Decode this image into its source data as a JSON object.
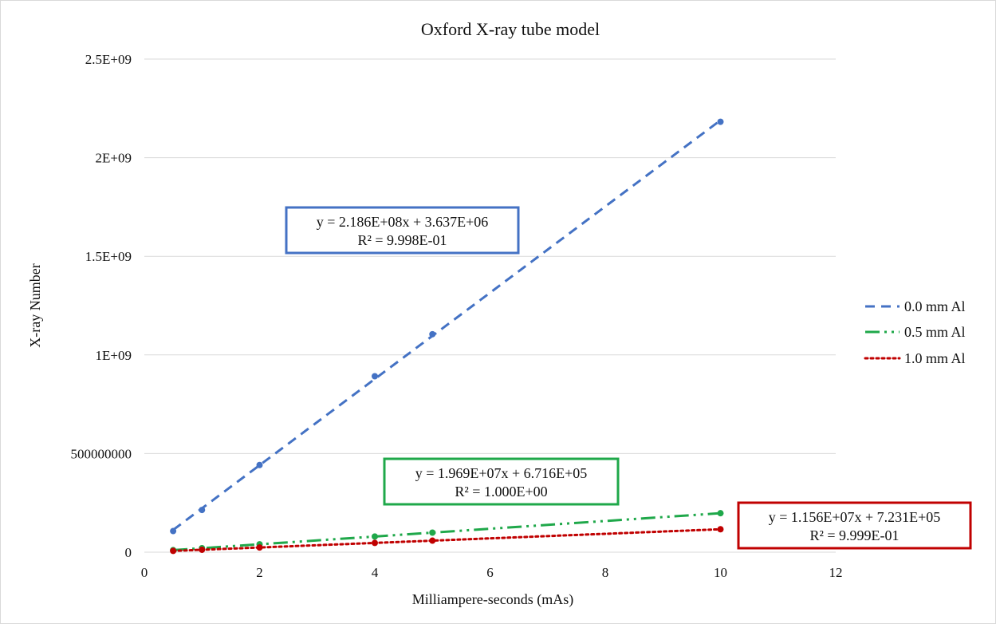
{
  "chart_data": {
    "type": "scatter",
    "title": "Oxford X-ray tube model",
    "xlabel": "Milliampere-seconds (mAs)",
    "ylabel": "X-ray Number",
    "xlim": [
      0,
      12
    ],
    "ylim": [
      0,
      2500000000
    ],
    "x_ticks": [
      0,
      2,
      4,
      6,
      8,
      10,
      12
    ],
    "x_tick_labels": [
      "0",
      "2",
      "4",
      "6",
      "8",
      "10",
      "12"
    ],
    "y_ticks": [
      0,
      500000000,
      1000000000,
      1500000000,
      2000000000,
      2500000000
    ],
    "y_tick_labels": [
      "0",
      "500000000",
      "1E+09",
      "1.5E+09",
      "2E+09",
      "2.5E+09"
    ],
    "grid": "horizontal",
    "legend_position": "right",
    "series": [
      {
        "name": "0.0 mm Al",
        "color": "#4472C4",
        "line_style": "dashed",
        "x": [
          0.5,
          1,
          2,
          4,
          5,
          10
        ],
        "y": [
          107000000,
          214000000,
          442000000,
          892000000,
          1105000000,
          2182000000
        ],
        "trendline": {
          "slope": 218600000,
          "intercept": 3637000
        },
        "equation": "y = 2.186E+08x + 3.637E+06",
        "r_squared": "R² = 9.998E-01",
        "box_color": "#4472C4"
      },
      {
        "name": "0.5 mm Al",
        "color": "#1FA84A",
        "line_style": "dashdotdot",
        "x": [
          0.5,
          1,
          2,
          4,
          5,
          10
        ],
        "y": [
          10500000,
          20400000,
          40100000,
          79400000,
          99100000,
          197600000
        ],
        "trendline": {
          "slope": 19690000,
          "intercept": 671600
        },
        "equation": "y = 1.969E+07x + 6.716E+05",
        "r_squared": "R² = 1.000E+00",
        "box_color": "#1FA84A"
      },
      {
        "name": "1.0 mm Al",
        "color": "#C00000",
        "line_style": "dotted",
        "x": [
          0.5,
          1,
          2,
          4,
          5,
          10
        ],
        "y": [
          6500000,
          12300000,
          23800000,
          46900000,
          58500000,
          116300000
        ],
        "trendline": {
          "slope": 11560000,
          "intercept": 723100
        },
        "equation": "y = 1.156E+07x + 7.231E+05",
        "r_squared": "R² = 9.999E-01",
        "box_color": "#C00000"
      }
    ]
  }
}
